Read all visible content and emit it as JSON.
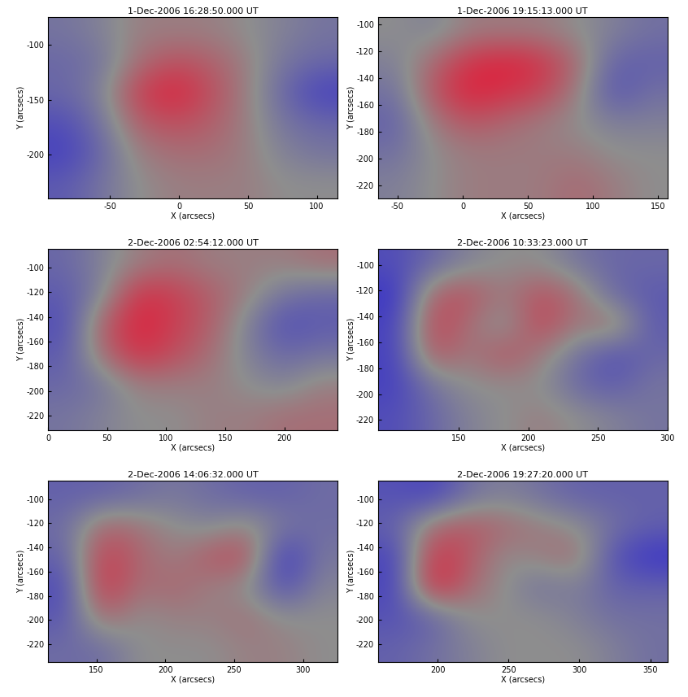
{
  "chart_data": [
    {
      "type": "heatmap",
      "title": "1-Dec-2006 16:28:50.000 UT",
      "x_label": "X (arcsecs)",
      "y_label": "Y (arcsecs)",
      "xlim": [
        -95,
        115
      ],
      "ylim": [
        -240,
        -75
      ],
      "xticks": [
        -50,
        0,
        50,
        100
      ],
      "yticks": [
        -100,
        -150,
        -200
      ],
      "colors": [
        "#3a34c8",
        "#8e8e8e",
        "#e0203c"
      ],
      "cells": [
        [
          -0.2,
          -0.1,
          0.1,
          0.1,
          0.1,
          0,
          -0.1,
          -0.2
        ],
        [
          -0.3,
          -0.2,
          0.2,
          0.4,
          0.3,
          0.1,
          -0.2,
          -0.3
        ],
        [
          -0.3,
          -0.1,
          0.5,
          0.7,
          0.4,
          0.1,
          -0.3,
          -0.6
        ],
        [
          -0.5,
          -0.2,
          0.3,
          0.4,
          0.3,
          0.1,
          -0.2,
          -0.3
        ],
        [
          -0.6,
          -0.3,
          0.1,
          0.2,
          0.2,
          0.1,
          -0.1,
          -0.2
        ],
        [
          -0.4,
          -0.2,
          0,
          0.1,
          0.1,
          0.1,
          0,
          0
        ]
      ]
    },
    {
      "type": "heatmap",
      "title": "1-Dec-2006 19:15:13.000 UT",
      "x_label": "X (arcsecs)",
      "y_label": "Y (arcsecs)",
      "xlim": [
        -65,
        157
      ],
      "ylim": [
        -230,
        -95
      ],
      "xticks": [
        -50,
        0,
        50,
        100,
        150
      ],
      "yticks": [
        -100,
        -120,
        -140,
        -160,
        -180,
        -200,
        -220
      ],
      "colors": [
        "#3a34c8",
        "#8e8e8e",
        "#e0203c"
      ],
      "cells": [
        [
          0,
          -0.1,
          0.1,
          0.1,
          0.1,
          0,
          -0.1,
          -0.2
        ],
        [
          -0.1,
          0.2,
          0.5,
          0.6,
          0.5,
          0.2,
          -0.3,
          -0.3
        ],
        [
          -0.2,
          0.3,
          0.6,
          0.5,
          0.4,
          0.1,
          -0.4,
          -0.2
        ],
        [
          -0.3,
          0.1,
          0.3,
          0.2,
          0.1,
          0,
          -0.1,
          -0.1
        ],
        [
          -0.2,
          0,
          0.1,
          0.1,
          0.1,
          0.1,
          0,
          0
        ],
        [
          -0.1,
          0,
          0.1,
          0.1,
          0.1,
          0.2,
          0.1,
          0
        ]
      ]
    },
    {
      "type": "heatmap",
      "title": "2-Dec-2006 02:54:12.000 UT",
      "x_label": "X (arcsecs)",
      "y_label": "Y (arcsecs)",
      "xlim": [
        0,
        245
      ],
      "ylim": [
        -232,
        -85
      ],
      "xticks": [
        0,
        50,
        100,
        150,
        200
      ],
      "yticks": [
        -100,
        -120,
        -140,
        -160,
        -180,
        -200,
        -220
      ],
      "colors": [
        "#3a34c8",
        "#8e8e8e",
        "#e0203c"
      ],
      "cells": [
        [
          -0.3,
          -0.1,
          0.1,
          0.2,
          0.1,
          0.1,
          0.1,
          0.2
        ],
        [
          -0.4,
          -0.1,
          0.6,
          0.5,
          0.3,
          0.1,
          -0.2,
          -0.3
        ],
        [
          -0.5,
          0.3,
          0.7,
          0.5,
          0.3,
          -0.1,
          -0.5,
          -0.4
        ],
        [
          -0.4,
          0.2,
          0.6,
          0.4,
          0.2,
          -0.1,
          -0.3,
          -0.2
        ],
        [
          -0.3,
          -0.2,
          0.1,
          0.1,
          0.1,
          0,
          -0.1,
          0.1
        ],
        [
          -0.2,
          -0.1,
          0,
          0,
          0.1,
          0.1,
          0.2,
          0.2
        ]
      ]
    },
    {
      "type": "heatmap",
      "title": "2-Dec-2006 10:33:23.000 UT",
      "x_label": "X (arcsecs)",
      "y_label": "Y (arcsecs)",
      "xlim": [
        92,
        300
      ],
      "ylim": [
        -228,
        -88
      ],
      "xticks": [
        150,
        200,
        250,
        300
      ],
      "yticks": [
        -100,
        -120,
        -140,
        -160,
        -180,
        -200,
        -220
      ],
      "colors": [
        "#3a34c8",
        "#8e8e8e",
        "#e0203c"
      ],
      "cells": [
        [
          -0.5,
          -0.3,
          -0.1,
          0,
          0,
          -0.2,
          -0.3,
          -0.3
        ],
        [
          -0.7,
          0.3,
          0.4,
          0.1,
          0.4,
          0.2,
          -0.3,
          -0.4
        ],
        [
          -0.6,
          0.5,
          0.2,
          -0.1,
          0.5,
          0.1,
          0.3,
          -0.4
        ],
        [
          -0.6,
          0.4,
          0.1,
          0.4,
          0.1,
          -0.2,
          -0.5,
          -0.3
        ],
        [
          -0.6,
          -0.2,
          0,
          0,
          0,
          -0.3,
          -0.4,
          -0.2
        ],
        [
          -0.5,
          -0.3,
          -0.1,
          0,
          0.1,
          0,
          -0.1,
          -0.2
        ]
      ]
    },
    {
      "type": "heatmap",
      "title": "2-Dec-2006 14:06:32.000 UT",
      "x_label": "X (arcsecs)",
      "y_label": "Y (arcsecs)",
      "xlim": [
        115,
        325
      ],
      "ylim": [
        -235,
        -85
      ],
      "xticks": [
        150,
        200,
        250,
        300
      ],
      "yticks": [
        -100,
        -120,
        -140,
        -160,
        -180,
        -200,
        -220
      ],
      "colors": [
        "#3a34c8",
        "#8e8e8e",
        "#e0203c"
      ],
      "cells": [
        [
          -0.4,
          -0.4,
          -0.3,
          -0.2,
          -0.3,
          -0.4,
          -0.4,
          -0.3
        ],
        [
          -0.3,
          0.3,
          0.2,
          0,
          -0.1,
          0.1,
          -0.2,
          -0.3
        ],
        [
          -0.4,
          0.6,
          0.3,
          0.1,
          0.4,
          0.5,
          -0.8,
          -0.2
        ],
        [
          -0.6,
          0.7,
          0.2,
          0.3,
          0.1,
          0,
          -0.6,
          -0.1
        ],
        [
          -0.5,
          0.3,
          0,
          0.1,
          0.1,
          0.2,
          0,
          0
        ],
        [
          -0.3,
          -0.3,
          0,
          0,
          0,
          0.1,
          0.1,
          0
        ]
      ]
    },
    {
      "type": "heatmap",
      "title": "2-Dec-2006 19:27:20.000 UT",
      "x_label": "X (arcsecs)",
      "y_label": "Y (arcsecs)",
      "xlim": [
        158,
        362
      ],
      "ylim": [
        -235,
        -85
      ],
      "xticks": [
        200,
        250,
        300,
        350
      ],
      "yticks": [
        -100,
        -120,
        -140,
        -160,
        -180,
        -200,
        -220
      ],
      "colors": [
        "#3a34c8",
        "#8e8e8e",
        "#e0203c"
      ],
      "cells": [
        [
          -0.4,
          -0.5,
          -0.2,
          -0.1,
          -0.2,
          -0.3,
          -0.3,
          -0.3
        ],
        [
          -0.3,
          0.2,
          0.3,
          0.2,
          0.1,
          0,
          -0.2,
          -0.3
        ],
        [
          -0.5,
          0.5,
          0.3,
          0,
          0.1,
          0.2,
          -0.4,
          -0.6
        ],
        [
          -0.5,
          0.6,
          0.2,
          0,
          -0.2,
          -0.1,
          -0.3,
          -0.3
        ],
        [
          -0.4,
          -0.3,
          0,
          0,
          0,
          -0.1,
          -0.2,
          -0.2
        ],
        [
          -0.3,
          -0.2,
          -0.1,
          0,
          0,
          0,
          -0.1,
          -0.2
        ]
      ]
    }
  ]
}
